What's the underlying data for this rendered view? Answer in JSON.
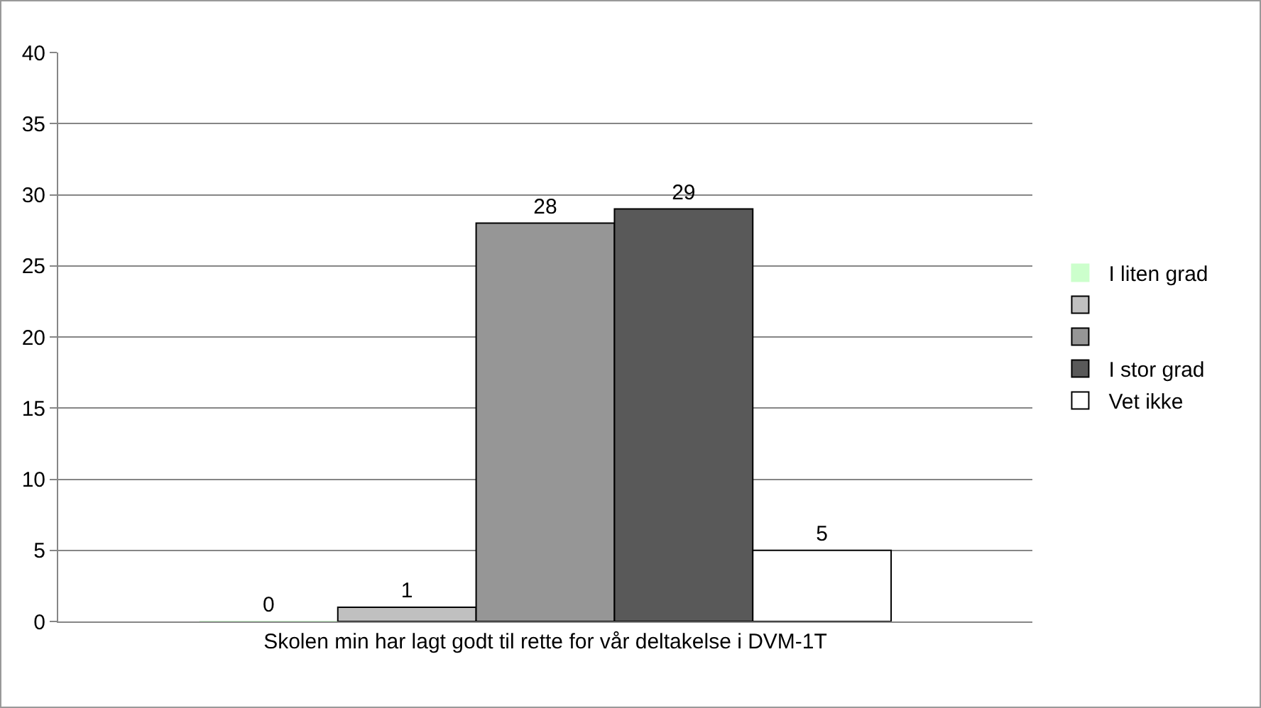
{
  "chart_data": {
    "type": "bar",
    "categories": [
      "Skolen min har lagt godt til rette for vår deltakelse i DVM-1T"
    ],
    "series": [
      {
        "name": "I liten grad",
        "color": "#ccffcc",
        "values": [
          0
        ]
      },
      {
        "color": "#c0c0c0",
        "values": [
          1
        ]
      },
      {
        "color": "#969696",
        "values": [
          28
        ]
      },
      {
        "name": "I stor grad",
        "color": "#595959",
        "values": [
          29
        ]
      },
      {
        "name": "Vet ikke",
        "color": "#ffffff",
        "values": [
          5
        ]
      }
    ],
    "ylim": [
      0,
      40
    ],
    "yticks": [
      0,
      5,
      10,
      15,
      20,
      25,
      30,
      35,
      40
    ],
    "grid": "y",
    "legend": "right",
    "data_labels": true
  }
}
